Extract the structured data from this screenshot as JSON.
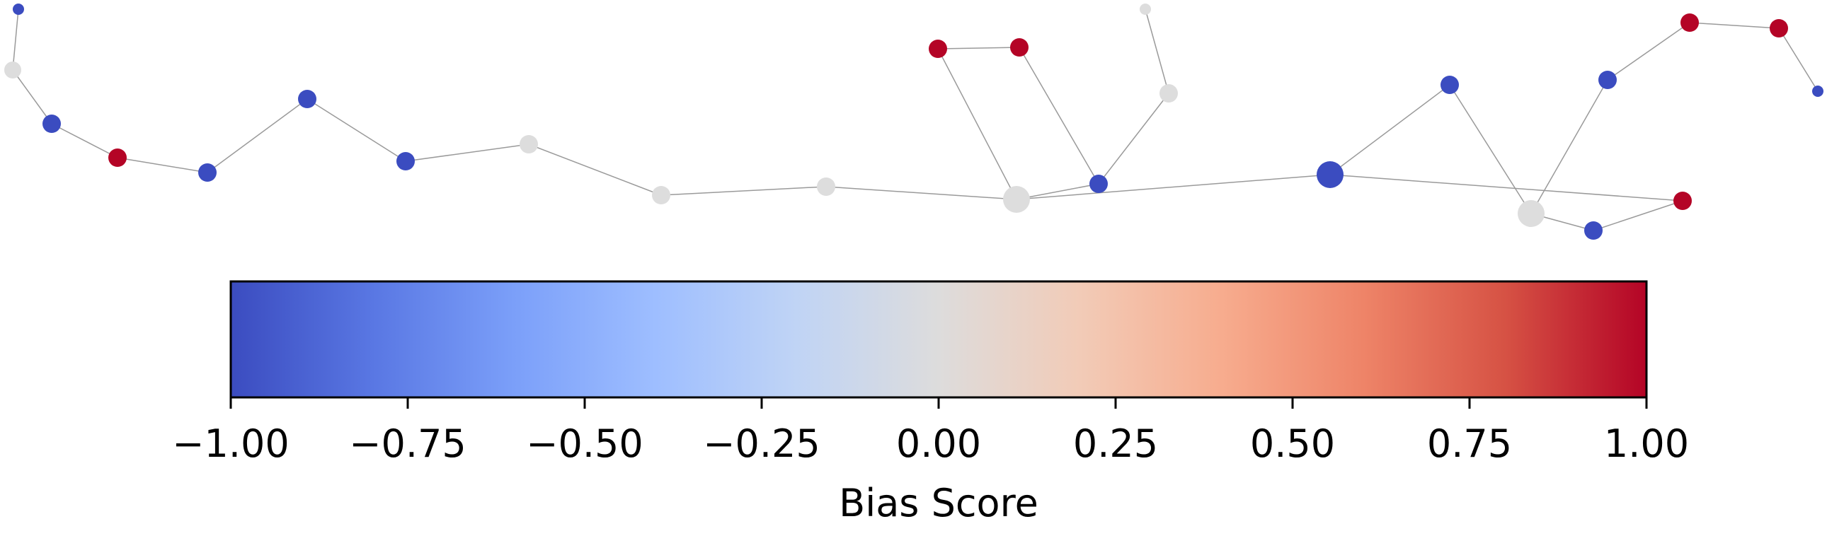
{
  "colorbar": {
    "title": "Bias Score",
    "min": -1.0,
    "max": 1.0,
    "colormap": "coolwarm",
    "ticks": [
      {
        "value": -1.0,
        "label": "−1.00"
      },
      {
        "value": -0.75,
        "label": "−0.75"
      },
      {
        "value": -0.5,
        "label": "−0.50"
      },
      {
        "value": -0.25,
        "label": "−0.25"
      },
      {
        "value": 0.0,
        "label": "0.00"
      },
      {
        "value": 0.25,
        "label": "0.25"
      },
      {
        "value": 0.5,
        "label": "0.50"
      },
      {
        "value": 0.75,
        "label": "0.75"
      },
      {
        "value": 1.0,
        "label": "1.00"
      }
    ],
    "stops": [
      "#3b4cc0",
      "#5977e3",
      "#7b9ff9",
      "#9ebeff",
      "#c0d4f5",
      "#dddcdc",
      "#f2cbb7",
      "#f7ac8e",
      "#ee8468",
      "#d65244",
      "#b40426"
    ]
  },
  "graph": {
    "colors": {
      "negative": "#3b4cc0",
      "neutral": "#dddddd",
      "positive": "#b40426",
      "edge": "#9a9a9a"
    },
    "nodes": [
      {
        "id": "n1",
        "score": -1.0
      },
      {
        "id": "n2",
        "score": 0.0
      },
      {
        "id": "n3",
        "score": -1.0
      },
      {
        "id": "n4",
        "score": 1.0
      },
      {
        "id": "n5",
        "score": -1.0
      },
      {
        "id": "n6",
        "score": -1.0
      },
      {
        "id": "n7",
        "score": -1.0
      },
      {
        "id": "n8",
        "score": 0.0
      },
      {
        "id": "n9",
        "score": 0.0
      },
      {
        "id": "n10",
        "score": 0.0
      },
      {
        "id": "n11",
        "score": 0.0
      },
      {
        "id": "n12",
        "score": 1.0
      },
      {
        "id": "n13",
        "score": 1.0
      },
      {
        "id": "n14",
        "score": -1.0
      },
      {
        "id": "n15",
        "score": 0.0
      },
      {
        "id": "n16",
        "score": 0.0
      },
      {
        "id": "n17",
        "score": -1.0
      },
      {
        "id": "n18",
        "score": -1.0
      },
      {
        "id": "n19",
        "score": 0.0
      },
      {
        "id": "n20",
        "score": 1.0
      },
      {
        "id": "n21",
        "score": -1.0
      },
      {
        "id": "n22",
        "score": -1.0
      },
      {
        "id": "n23",
        "score": 1.0
      },
      {
        "id": "n24",
        "score": 1.0
      },
      {
        "id": "n25",
        "score": -1.0
      }
    ],
    "edges": [
      [
        "n1",
        "n2"
      ],
      [
        "n2",
        "n3"
      ],
      [
        "n3",
        "n4"
      ],
      [
        "n4",
        "n5"
      ],
      [
        "n5",
        "n6"
      ],
      [
        "n6",
        "n7"
      ],
      [
        "n7",
        "n8"
      ],
      [
        "n8",
        "n9"
      ],
      [
        "n9",
        "n10"
      ],
      [
        "n10",
        "n11"
      ],
      [
        "n11",
        "n12"
      ],
      [
        "n12",
        "n13"
      ],
      [
        "n13",
        "n14"
      ],
      [
        "n11",
        "n14"
      ],
      [
        "n14",
        "n15"
      ],
      [
        "n15",
        "n16"
      ],
      [
        "n11",
        "n17"
      ],
      [
        "n17",
        "n18"
      ],
      [
        "n18",
        "n19"
      ],
      [
        "n17",
        "n20"
      ],
      [
        "n20",
        "n21"
      ],
      [
        "n21",
        "n19"
      ],
      [
        "n19",
        "n22"
      ],
      [
        "n22",
        "n23"
      ],
      [
        "n23",
        "n24"
      ],
      [
        "n24",
        "n25"
      ]
    ]
  }
}
